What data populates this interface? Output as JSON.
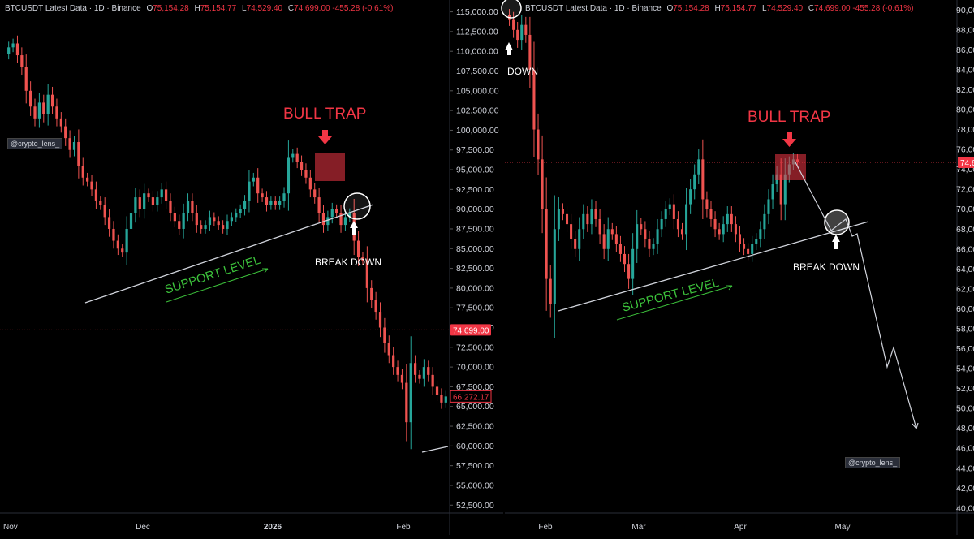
{
  "header": {
    "symbol": "BTCUSDT Latest Data · 1D · Binance",
    "o_label": "O",
    "o": "75,154.28",
    "h_label": "H",
    "h": "75,154.77",
    "l_label": "L",
    "l": "74,529.40",
    "c_label": "C",
    "c": "74,699.00",
    "change": "-455.28 (-0.61%)"
  },
  "colors": {
    "up": "#26a69a",
    "down": "#ef5350",
    "trap": "#f23645",
    "support": "#3cc13b",
    "line": "#d1d4dc"
  },
  "chart_data": [
    {
      "type": "candlestick",
      "panel": "left",
      "ylim": [
        51500,
        116500
      ],
      "y_ticks": [
        "115,000.00",
        "112,500.00",
        "110,000.00",
        "107,500.00",
        "105,000.00",
        "102,500.00",
        "100,000.00",
        "97,500.00",
        "95,000.00",
        "92,500.00",
        "90,000.00",
        "87,500.00",
        "85,000.00",
        "82,500.00",
        "80,000.00",
        "77,500.00",
        "75,000.00",
        "72,500.00",
        "70,000.00",
        "67,500.00",
        "65,000.00",
        "62,500.00",
        "60,000.00",
        "57,500.00",
        "55,000.00",
        "52,500.00"
      ],
      "x_ticks": [
        "Nov",
        "Dec",
        "2026",
        "Feb"
      ],
      "price_label": "74,699.00",
      "price_value": 74699,
      "price_label2": "66,272.17",
      "price_value2": 66272.17,
      "annotations": {
        "trap": "BULL TRAP",
        "support": "SUPPORT LEVEL",
        "breakdown": "BREAK DOWN"
      },
      "watermark": "@crypto_lens_",
      "candles_close_approx": [
        110500,
        111000,
        109500,
        108000,
        105000,
        103000,
        101500,
        103500,
        102000,
        104500,
        103000,
        101500,
        100500,
        99000,
        97500,
        98500,
        95500,
        94000,
        93500,
        92500,
        91000,
        90500,
        89000,
        87500,
        86000,
        85000,
        84500,
        87500,
        89500,
        91500,
        90000,
        92000,
        91500,
        90500,
        91500,
        92500,
        91000,
        89500,
        88500,
        87500,
        89500,
        91000,
        89500,
        88000,
        87500,
        88000,
        89000,
        88500,
        88000,
        87500,
        88500,
        89000,
        89500,
        90000,
        91000,
        93500,
        94000,
        92000,
        91500,
        90500,
        91000,
        90500,
        91000,
        92000,
        96500,
        97000,
        96000,
        95000,
        94000,
        92500,
        91500,
        89500,
        88000,
        89000,
        90000,
        89500,
        88000,
        89000,
        89500,
        86000,
        84000,
        83500,
        80000,
        78500,
        77000,
        75000,
        73000,
        71500,
        70000,
        69000,
        68000,
        63000,
        70500,
        69000,
        68500,
        70000,
        69000,
        67500,
        66500,
        65500,
        66272
      ]
    },
    {
      "type": "candlestick",
      "panel": "right",
      "ylim": [
        39500,
        91000
      ],
      "y_ticks": [
        "90,000.00",
        "88,000.00",
        "86,000.00",
        "84,000.00",
        "82,000.00",
        "80,000.00",
        "78,000.00",
        "76,000.00",
        "74,000.00",
        "72,000.00",
        "70,000.00",
        "68,000.00",
        "66,000.00",
        "64,000.00",
        "62,000.00",
        "60,000.00",
        "58,000.00",
        "56,000.00",
        "54,000.00",
        "52,000.00",
        "50,000.00",
        "48,000.00",
        "46,000.00",
        "44,000.00",
        "42,000.00",
        "40,000.00"
      ],
      "x_ticks": [
        "Feb",
        "Mar",
        "Apr",
        "May"
      ],
      "price_label": "74,699.00",
      "price_value": 74699,
      "annotations": {
        "trap": "BULL TRAP",
        "support": "SUPPORT LEVEL",
        "breakdown": "BREAK DOWN",
        "down": "DOWN"
      },
      "watermark": "@crypto_lens_",
      "candles_close_approx": [
        89000,
        88000,
        87000,
        88500,
        87500,
        84000,
        78000,
        75000,
        70000,
        63000,
        60500,
        68000,
        70000,
        69500,
        68500,
        67000,
        66000,
        68000,
        69500,
        68500,
        70000,
        69000,
        67500,
        66000,
        68000,
        67500,
        66500,
        65500,
        64500,
        63000,
        66000,
        68500,
        68000,
        67000,
        66000,
        66500,
        68000,
        69000,
        70000,
        70500,
        69000,
        68000,
        67500,
        70500,
        72000,
        73500,
        75000,
        71000,
        70000,
        69000,
        68000,
        67500,
        68500,
        69500,
        68500,
        67500,
        66500,
        66000,
        65500,
        66500,
        67000,
        68000,
        69500,
        71000,
        72500,
        73500,
        70500,
        73500,
        74500,
        75000,
        74699
      ],
      "projection": [
        [
          74699
        ],
        [
          72000
        ],
        [
          70000
        ],
        [
          68000
        ],
        [
          67500
        ],
        [
          66500
        ],
        [
          67500
        ],
        [
          64000
        ],
        [
          58000
        ],
        [
          55000
        ],
        [
          56500
        ],
        [
          53000
        ],
        [
          49500
        ],
        [
          48500
        ]
      ]
    }
  ]
}
